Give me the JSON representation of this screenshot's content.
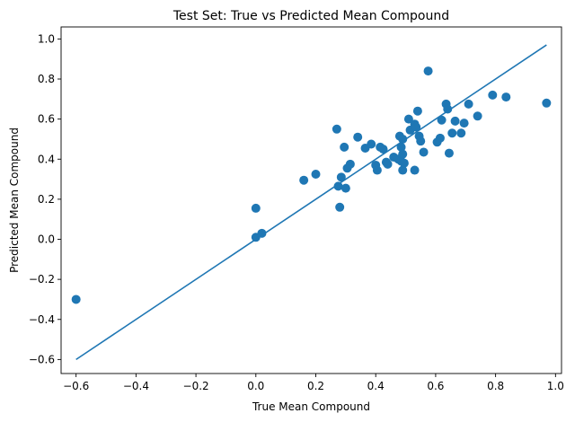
{
  "chart_data": {
    "type": "scatter",
    "title": "Test Set: True vs Predicted Mean Compound",
    "xlabel": "True Mean Compound",
    "ylabel": "Predicted Mean Compound",
    "xlim": [
      -0.65,
      1.02
    ],
    "ylim": [
      -0.67,
      1.06
    ],
    "xticks": [
      -0.6,
      -0.4,
      -0.2,
      0.0,
      0.2,
      0.4,
      0.6,
      0.8,
      1.0
    ],
    "xtick_labels": [
      "−0.6",
      "−0.4",
      "−0.2",
      "0.0",
      "0.2",
      "0.4",
      "0.6",
      "0.8",
      "1.0"
    ],
    "yticks": [
      -0.6,
      -0.4,
      -0.2,
      0.0,
      0.2,
      0.4,
      0.6,
      0.8,
      1.0
    ],
    "ytick_labels": [
      "−0.6",
      "−0.4",
      "−0.2",
      "0.0",
      "0.2",
      "0.4",
      "0.6",
      "0.8",
      "1.0"
    ],
    "grid": false,
    "color": "#1f77b4",
    "points": [
      [
        -0.6,
        -0.3
      ],
      [
        0.0,
        0.155
      ],
      [
        0.0,
        0.01
      ],
      [
        0.02,
        0.03
      ],
      [
        0.16,
        0.295
      ],
      [
        0.2,
        0.325
      ],
      [
        0.27,
        0.55
      ],
      [
        0.275,
        0.265
      ],
      [
        0.28,
        0.16
      ],
      [
        0.285,
        0.31
      ],
      [
        0.295,
        0.46
      ],
      [
        0.3,
        0.255
      ],
      [
        0.305,
        0.355
      ],
      [
        0.315,
        0.375
      ],
      [
        0.34,
        0.51
      ],
      [
        0.365,
        0.455
      ],
      [
        0.385,
        0.475
      ],
      [
        0.4,
        0.37
      ],
      [
        0.405,
        0.345
      ],
      [
        0.415,
        0.46
      ],
      [
        0.425,
        0.45
      ],
      [
        0.435,
        0.385
      ],
      [
        0.44,
        0.375
      ],
      [
        0.46,
        0.41
      ],
      [
        0.475,
        0.4
      ],
      [
        0.48,
        0.515
      ],
      [
        0.485,
        0.39
      ],
      [
        0.485,
        0.46
      ],
      [
        0.49,
        0.5
      ],
      [
        0.49,
        0.425
      ],
      [
        0.49,
        0.345
      ],
      [
        0.495,
        0.38
      ],
      [
        0.51,
        0.6
      ],
      [
        0.515,
        0.545
      ],
      [
        0.53,
        0.345
      ],
      [
        0.53,
        0.575
      ],
      [
        0.535,
        0.56
      ],
      [
        0.54,
        0.64
      ],
      [
        0.545,
        0.515
      ],
      [
        0.55,
        0.49
      ],
      [
        0.56,
        0.435
      ],
      [
        0.575,
        0.84
      ],
      [
        0.605,
        0.485
      ],
      [
        0.615,
        0.505
      ],
      [
        0.62,
        0.595
      ],
      [
        0.635,
        0.675
      ],
      [
        0.64,
        0.65
      ],
      [
        0.645,
        0.43
      ],
      [
        0.655,
        0.53
      ],
      [
        0.665,
        0.59
      ],
      [
        0.685,
        0.53
      ],
      [
        0.695,
        0.58
      ],
      [
        0.71,
        0.675
      ],
      [
        0.74,
        0.615
      ],
      [
        0.79,
        0.72
      ],
      [
        0.835,
        0.71
      ],
      [
        0.97,
        0.68
      ]
    ],
    "line": {
      "x": [
        -0.6,
        0.97
      ],
      "y": [
        -0.6,
        0.97
      ]
    }
  }
}
